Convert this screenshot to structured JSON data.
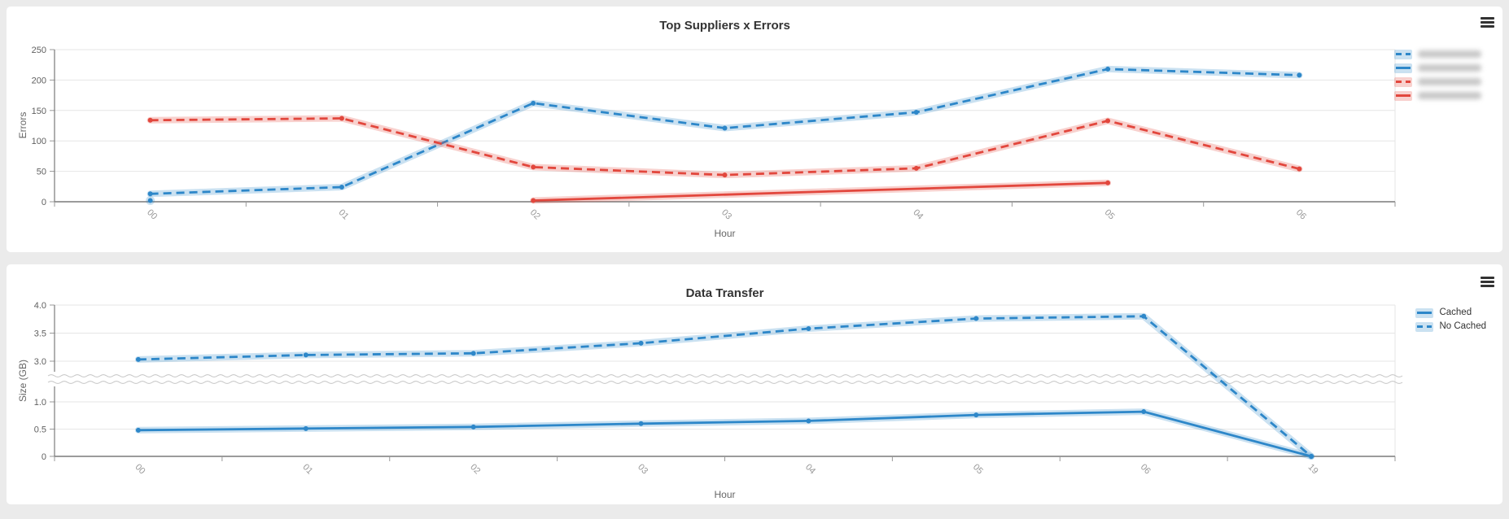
{
  "page": {
    "background": "#ebebeb",
    "card_background": "#ffffff",
    "menu_icon": "hamburger-menu-icon"
  },
  "chart_data": [
    {
      "type": "line",
      "title": "Top Suppliers x Errors",
      "xlabel": "Hour",
      "ylabel": "Errors",
      "categories": [
        "00",
        "01",
        "02",
        "03",
        "04",
        "05",
        "06"
      ],
      "yticks": [
        {
          "v": 0,
          "label": "0"
        },
        {
          "v": 50,
          "label": "50"
        },
        {
          "v": 100,
          "label": "100"
        },
        {
          "v": 150,
          "label": "150"
        },
        {
          "v": 200,
          "label": "200"
        },
        {
          "v": 250,
          "label": "250"
        }
      ],
      "ylim": [
        0,
        250
      ],
      "grid": true,
      "legend_position": "right",
      "legend_redacted_note": "legend labels are blurred/unreadable in the screenshot",
      "series": [
        {
          "name": "",
          "redacted": true,
          "color": "#2d87c9",
          "dash": true,
          "values": [
            13,
            24,
            162,
            121,
            147,
            218,
            208
          ]
        },
        {
          "name": "",
          "redacted": true,
          "color": "#2d87c9",
          "dash": false,
          "values": [
            2,
            null,
            null,
            null,
            null,
            null,
            null
          ]
        },
        {
          "name": "",
          "redacted": true,
          "color": "#e2473d",
          "dash": true,
          "values": [
            134,
            137,
            57,
            44,
            55,
            133,
            54
          ]
        },
        {
          "name": "",
          "redacted": true,
          "color": "#e2473d",
          "dash": false,
          "values": [
            null,
            null,
            2,
            null,
            null,
            31,
            null
          ]
        }
      ]
    },
    {
      "type": "line",
      "title": "Data Transfer",
      "xlabel": "Hour",
      "ylabel": "Size (GB)",
      "categories": [
        "00",
        "01",
        "02",
        "03",
        "04",
        "05",
        "06",
        "19"
      ],
      "yticks": [
        {
          "v": 0,
          "label": "0"
        },
        {
          "v": 0.5,
          "label": "0.5"
        },
        {
          "v": 1,
          "label": "1.0"
        },
        {
          "v": 3,
          "label": "3.0"
        },
        {
          "v": 3.5,
          "label": "3.5"
        },
        {
          "v": 4,
          "label": "4.0"
        }
      ],
      "axis_break": {
        "between": [
          1.0,
          3.0
        ]
      },
      "grid": true,
      "legend_position": "right",
      "series": [
        {
          "name": "Cached",
          "redacted": false,
          "color": "#2d87c9",
          "dash": false,
          "values": [
            0.48,
            0.51,
            0.54,
            0.6,
            0.65,
            0.76,
            0.82,
            0
          ]
        },
        {
          "name": "No Cached",
          "redacted": false,
          "color": "#2d87c9",
          "dash": true,
          "values": [
            3.03,
            3.11,
            3.14,
            3.32,
            3.58,
            3.76,
            3.8,
            0
          ]
        }
      ]
    }
  ]
}
